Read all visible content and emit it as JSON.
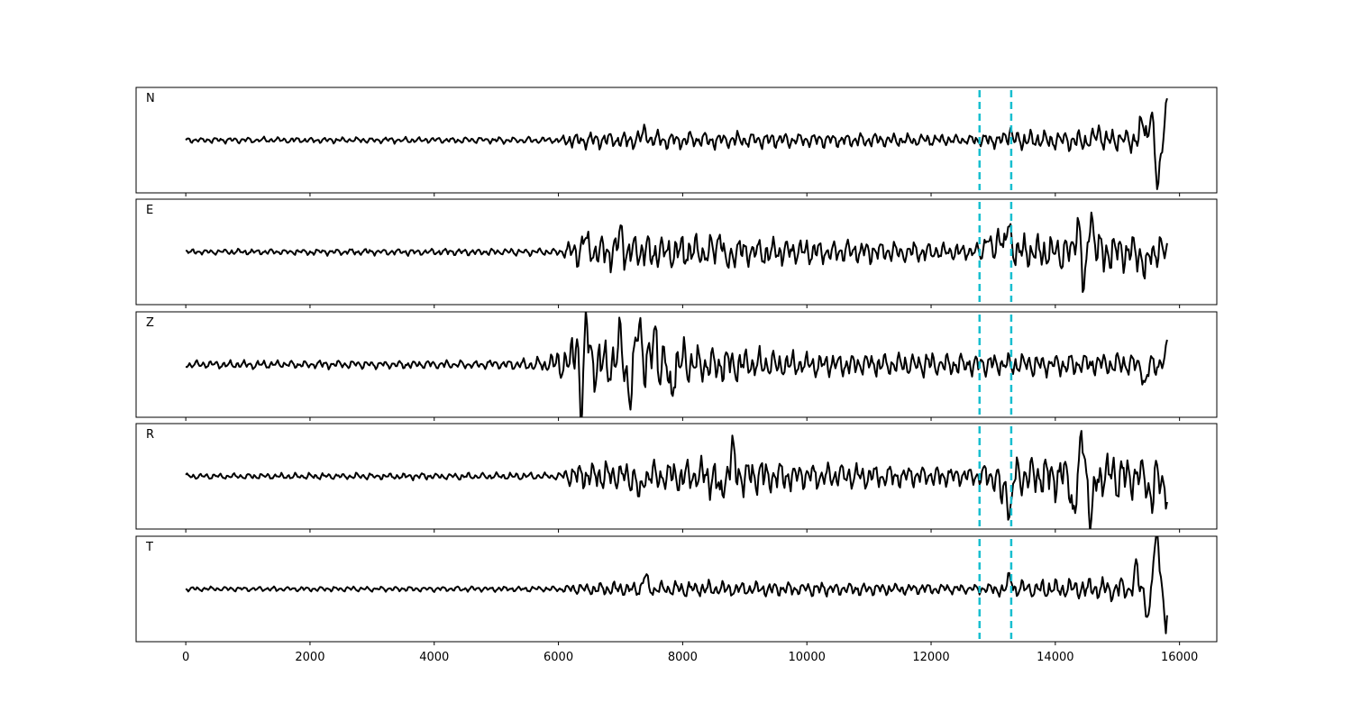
{
  "chart_data": {
    "type": "line",
    "title": "",
    "xlabel": "",
    "ylabel": "",
    "xlim": [
      -800,
      16600
    ],
    "xticks": [
      0,
      2000,
      4000,
      6000,
      8000,
      10000,
      12000,
      14000,
      16000
    ],
    "xtick_labels": [
      "0",
      "2000",
      "4000",
      "6000",
      "8000",
      "10000",
      "12000",
      "14000",
      "16000"
    ],
    "grid": false,
    "sample_range": [
      0,
      15800
    ],
    "vertical_markers": {
      "x": [
        12780,
        13290
      ],
      "color": "#17becf",
      "style": "dashed"
    },
    "trace_color": "#000000",
    "panels": [
      {
        "label": "N",
        "ylim": [
          -1.05,
          1.05
        ],
        "envelope": [
          [
            0,
            0.06
          ],
          [
            6000,
            0.07
          ],
          [
            6200,
            0.16
          ],
          [
            7500,
            0.2
          ],
          [
            9000,
            0.18
          ],
          [
            12700,
            0.12
          ],
          [
            13300,
            0.2
          ],
          [
            15000,
            0.24
          ],
          [
            15500,
            0.3
          ]
        ],
        "events": [
          [
            7400,
            0.2
          ],
          [
            13270,
            0.2
          ],
          [
            14700,
            0.2
          ],
          [
            15400,
            0.35
          ],
          [
            15650,
            -1.05
          ],
          [
            15790,
            0.72
          ],
          [
            15540,
            0.6
          ]
        ]
      },
      {
        "label": "E",
        "ylim": [
          -1.05,
          1.05
        ],
        "envelope": [
          [
            0,
            0.06
          ],
          [
            6000,
            0.08
          ],
          [
            6300,
            0.35
          ],
          [
            7500,
            0.4
          ],
          [
            8700,
            0.35
          ],
          [
            11000,
            0.24
          ],
          [
            12700,
            0.18
          ],
          [
            13200,
            0.35
          ],
          [
            14500,
            0.45
          ],
          [
            15800,
            0.35
          ]
        ],
        "events": [
          [
            6420,
            0.3
          ],
          [
            7000,
            0.4
          ],
          [
            8600,
            0.4
          ],
          [
            8700,
            -0.35
          ],
          [
            12900,
            0.3
          ],
          [
            13100,
            0.5
          ],
          [
            13250,
            0.55
          ],
          [
            14360,
            0.7
          ],
          [
            14460,
            -0.85
          ],
          [
            14570,
            0.9
          ],
          [
            15450,
            -0.45
          ]
        ]
      },
      {
        "label": "Z",
        "ylim": [
          -1.05,
          1.05
        ],
        "envelope": [
          [
            0,
            0.09
          ],
          [
            5000,
            0.09
          ],
          [
            5800,
            0.15
          ],
          [
            6200,
            0.55
          ],
          [
            7600,
            0.6
          ],
          [
            8500,
            0.4
          ],
          [
            10000,
            0.25
          ],
          [
            15800,
            0.25
          ]
        ],
        "events": [
          [
            6300,
            0.6
          ],
          [
            6370,
            -0.9
          ],
          [
            6450,
            0.8
          ],
          [
            7000,
            0.5
          ],
          [
            7150,
            -0.7
          ],
          [
            7300,
            1.05
          ],
          [
            7550,
            0.7
          ],
          [
            7800,
            -0.6
          ],
          [
            15450,
            -0.45
          ],
          [
            15790,
            0.25
          ]
        ]
      },
      {
        "label": "R",
        "ylim": [
          -1.05,
          1.05
        ],
        "envelope": [
          [
            0,
            0.06
          ],
          [
            6000,
            0.08
          ],
          [
            6300,
            0.3
          ],
          [
            8000,
            0.35
          ],
          [
            8700,
            0.45
          ],
          [
            10000,
            0.3
          ],
          [
            12700,
            0.22
          ],
          [
            13200,
            0.4
          ],
          [
            14300,
            0.5
          ],
          [
            15800,
            0.45
          ]
        ],
        "events": [
          [
            7300,
            -0.45
          ],
          [
            8600,
            -0.45
          ],
          [
            8800,
            0.5
          ],
          [
            13150,
            -0.5
          ],
          [
            13270,
            -0.75
          ],
          [
            14300,
            -0.8
          ],
          [
            14440,
            0.8
          ],
          [
            14580,
            -0.95
          ],
          [
            15550,
            -0.6
          ],
          [
            15790,
            -0.3
          ]
        ]
      },
      {
        "label": "T",
        "ylim": [
          -1.05,
          1.05
        ],
        "envelope": [
          [
            0,
            0.05
          ],
          [
            6000,
            0.06
          ],
          [
            6300,
            0.14
          ],
          [
            8000,
            0.17
          ],
          [
            11000,
            0.14
          ],
          [
            12700,
            0.1
          ],
          [
            13300,
            0.18
          ],
          [
            15000,
            0.25
          ],
          [
            15500,
            0.3
          ]
        ],
        "events": [
          [
            7400,
            0.25
          ],
          [
            13270,
            0.25
          ],
          [
            15300,
            0.4
          ],
          [
            15500,
            -0.7
          ],
          [
            15580,
            0.5
          ],
          [
            15650,
            1.05
          ],
          [
            15780,
            -0.75
          ]
        ]
      }
    ]
  }
}
